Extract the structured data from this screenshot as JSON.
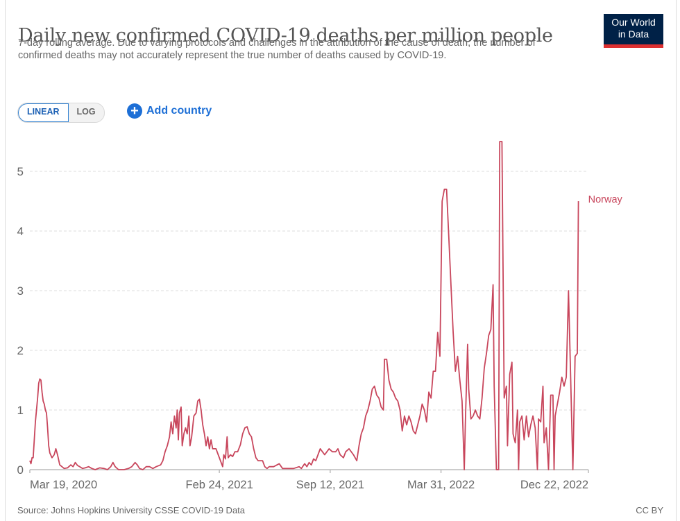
{
  "header": {
    "title": "Daily new confirmed COVID-19 deaths per million people",
    "subtitle": "7-day rolling average. Due to varying protocols and challenges in the attribution of the cause of death, the number of confirmed deaths may not accurately represent the true number of deaths caused by COVID-19.",
    "logo_line1": "Our World",
    "logo_line2": "in Data"
  },
  "controls": {
    "scale_options": [
      "LINEAR",
      "LOG"
    ],
    "active_scale": "LINEAR",
    "add_country_label": "Add country",
    "add_icon": "plus-circle-icon"
  },
  "footer": {
    "source": "Source: Johns Hopkins University CSSE COVID-19 Data",
    "license": "CC BY"
  },
  "colors": {
    "series": "#c8465c",
    "grid": "#dddddd",
    "axis": "#bbbbbb",
    "tick_text": "#666666",
    "accent": "#1d6fd6",
    "logo_bg": "#002147",
    "logo_bar": "#dc2f30"
  },
  "chart_data": {
    "type": "line",
    "title": "Daily new confirmed COVID-19 deaths per million people",
    "xlabel": "",
    "ylabel": "",
    "x_start": "Mar 19, 2020",
    "x_end": "Dec 22, 2022",
    "x_ticks": [
      {
        "label": "Mar 19, 2020",
        "day": 0
      },
      {
        "label": "Feb 24, 2021",
        "day": 342
      },
      {
        "label": "Sep 12, 2021",
        "day": 542
      },
      {
        "label": "Mar 31, 2022",
        "day": 742
      },
      {
        "label": "Dec 22, 2022",
        "day": 1008
      }
    ],
    "ylim": [
      0,
      5.5
    ],
    "y_ticks": [
      0,
      1,
      2,
      3,
      4,
      5
    ],
    "grid": true,
    "legend": "line-end label",
    "series": [
      {
        "name": "Norway",
        "x_unit": "days since Mar 19, 2020",
        "points": [
          [
            0,
            0.15
          ],
          [
            2,
            0.1
          ],
          [
            4,
            0.2
          ],
          [
            6,
            0.2
          ],
          [
            8,
            0.5
          ],
          [
            10,
            0.8
          ],
          [
            12,
            1.0
          ],
          [
            14,
            1.2
          ],
          [
            16,
            1.45
          ],
          [
            18,
            1.52
          ],
          [
            20,
            1.5
          ],
          [
            22,
            1.3
          ],
          [
            24,
            1.15
          ],
          [
            26,
            1.1
          ],
          [
            28,
            1.0
          ],
          [
            30,
            0.95
          ],
          [
            32,
            0.7
          ],
          [
            34,
            0.4
          ],
          [
            36,
            0.28
          ],
          [
            40,
            0.2
          ],
          [
            44,
            0.25
          ],
          [
            47,
            0.35
          ],
          [
            50,
            0.25
          ],
          [
            54,
            0.08
          ],
          [
            58,
            0.05
          ],
          [
            62,
            0.02
          ],
          [
            68,
            0.03
          ],
          [
            74,
            0.08
          ],
          [
            78,
            0.05
          ],
          [
            82,
            0.12
          ],
          [
            86,
            0.07
          ],
          [
            90,
            0.05
          ],
          [
            95,
            0.02
          ],
          [
            100,
            0.03
          ],
          [
            106,
            0.05
          ],
          [
            112,
            0.02
          ],
          [
            118,
            0.0
          ],
          [
            126,
            0.03
          ],
          [
            134,
            0.02
          ],
          [
            140,
            0.0
          ],
          [
            146,
            0.05
          ],
          [
            150,
            0.12
          ],
          [
            154,
            0.05
          ],
          [
            160,
            0.0
          ],
          [
            170,
            0.0
          ],
          [
            178,
            0.02
          ],
          [
            184,
            0.05
          ],
          [
            190,
            0.12
          ],
          [
            194,
            0.08
          ],
          [
            198,
            0.02
          ],
          [
            204,
            0.0
          ],
          [
            210,
            0.05
          ],
          [
            216,
            0.05
          ],
          [
            222,
            0.02
          ],
          [
            228,
            0.05
          ],
          [
            236,
            0.08
          ],
          [
            240,
            0.15
          ],
          [
            244,
            0.3
          ],
          [
            248,
            0.4
          ],
          [
            252,
            0.55
          ],
          [
            255,
            0.8
          ],
          [
            258,
            0.6
          ],
          [
            261,
            0.9
          ],
          [
            264,
            0.7
          ],
          [
            266,
            1.0
          ],
          [
            268,
            0.5
          ],
          [
            270,
            0.95
          ],
          [
            273,
            1.05
          ],
          [
            275,
            0.4
          ],
          [
            278,
            0.6
          ],
          [
            281,
            0.7
          ],
          [
            284,
            0.6
          ],
          [
            287,
            0.9
          ],
          [
            289,
            0.4
          ],
          [
            292,
            0.55
          ],
          [
            296,
            0.9
          ],
          [
            300,
            0.95
          ],
          [
            303,
            1.15
          ],
          [
            306,
            1.18
          ],
          [
            309,
            1.0
          ],
          [
            312,
            0.75
          ],
          [
            315,
            0.6
          ],
          [
            318,
            0.4
          ],
          [
            321,
            0.55
          ],
          [
            324,
            0.35
          ],
          [
            327,
            0.5
          ],
          [
            330,
            0.35
          ],
          [
            336,
            0.35
          ],
          [
            340,
            0.25
          ],
          [
            344,
            0.15
          ],
          [
            348,
            0.05
          ],
          [
            350,
            0.25
          ],
          [
            353,
            0.18
          ],
          [
            356,
            0.55
          ],
          [
            358,
            0.2
          ],
          [
            362,
            0.25
          ],
          [
            366,
            0.22
          ],
          [
            370,
            0.3
          ],
          [
            375,
            0.3
          ],
          [
            380,
            0.42
          ],
          [
            384,
            0.6
          ],
          [
            388,
            0.7
          ],
          [
            392,
            0.72
          ],
          [
            396,
            0.6
          ],
          [
            400,
            0.55
          ],
          [
            404,
            0.35
          ],
          [
            408,
            0.2
          ],
          [
            412,
            0.15
          ],
          [
            420,
            0.15
          ],
          [
            424,
            0.05
          ],
          [
            428,
            0.02
          ],
          [
            432,
            0.05
          ],
          [
            440,
            0.05
          ],
          [
            450,
            0.1
          ],
          [
            456,
            0.02
          ],
          [
            466,
            0.02
          ],
          [
            476,
            0.02
          ],
          [
            486,
            0.05
          ],
          [
            490,
            0.02
          ],
          [
            496,
            0.1
          ],
          [
            500,
            0.05
          ],
          [
            504,
            0.12
          ],
          [
            508,
            0.08
          ],
          [
            512,
            0.18
          ],
          [
            516,
            0.15
          ],
          [
            520,
            0.25
          ],
          [
            524,
            0.35
          ],
          [
            528,
            0.3
          ],
          [
            532,
            0.25
          ],
          [
            536,
            0.3
          ],
          [
            540,
            0.35
          ],
          [
            546,
            0.3
          ],
          [
            552,
            0.3
          ],
          [
            556,
            0.35
          ],
          [
            560,
            0.25
          ],
          [
            566,
            0.2
          ],
          [
            570,
            0.3
          ],
          [
            576,
            0.35
          ],
          [
            580,
            0.3
          ],
          [
            584,
            0.25
          ],
          [
            590,
            0.15
          ],
          [
            594,
            0.4
          ],
          [
            598,
            0.6
          ],
          [
            602,
            0.7
          ],
          [
            606,
            0.9
          ],
          [
            610,
            1.0
          ],
          [
            614,
            1.15
          ],
          [
            618,
            1.35
          ],
          [
            622,
            1.4
          ],
          [
            626,
            1.25
          ],
          [
            630,
            1.2
          ],
          [
            634,
            1.05
          ],
          [
            638,
            1.0
          ],
          [
            640,
            1.85
          ],
          [
            644,
            1.85
          ],
          [
            648,
            1.5
          ],
          [
            652,
            1.35
          ],
          [
            656,
            1.3
          ],
          [
            660,
            1.2
          ],
          [
            664,
            1.15
          ],
          [
            668,
            1.0
          ],
          [
            672,
            0.65
          ],
          [
            676,
            0.9
          ],
          [
            680,
            0.75
          ],
          [
            684,
            0.9
          ],
          [
            688,
            0.8
          ],
          [
            692,
            0.65
          ],
          [
            696,
            0.6
          ],
          [
            700,
            0.75
          ],
          [
            704,
            0.9
          ],
          [
            708,
            1.1
          ],
          [
            712,
            1.0
          ],
          [
            716,
            0.8
          ],
          [
            720,
            1.3
          ],
          [
            724,
            1.2
          ],
          [
            728,
            1.65
          ],
          [
            732,
            1.65
          ],
          [
            736,
            2.3
          ],
          [
            740,
            1.9
          ],
          [
            744,
            4.5
          ],
          [
            748,
            4.7
          ],
          [
            752,
            4.7
          ],
          [
            756,
            3.9
          ],
          [
            760,
            3.1
          ],
          [
            764,
            2.3
          ],
          [
            768,
            1.65
          ],
          [
            772,
            1.9
          ],
          [
            776,
            1.5
          ],
          [
            780,
            1.15
          ],
          [
            784,
            0.0
          ],
          [
            786,
            0.8
          ],
          [
            790,
            2.1
          ],
          [
            792,
            1.35
          ],
          [
            796,
            0.85
          ],
          [
            800,
            0.9
          ],
          [
            804,
            1.0
          ],
          [
            808,
            0.9
          ],
          [
            812,
            0.85
          ],
          [
            816,
            1.2
          ],
          [
            820,
            1.7
          ],
          [
            824,
            1.95
          ],
          [
            828,
            2.25
          ],
          [
            832,
            2.35
          ],
          [
            836,
            3.1
          ],
          [
            838,
            1.4
          ],
          [
            842,
            0.0
          ],
          [
            846,
            0.0
          ],
          [
            848,
            5.5
          ],
          [
            852,
            5.5
          ],
          [
            856,
            1.2
          ],
          [
            860,
            1.4
          ],
          [
            862,
            0.4
          ],
          [
            866,
            1.6
          ],
          [
            870,
            1.8
          ],
          [
            872,
            0.6
          ],
          [
            876,
            0.45
          ],
          [
            880,
            1.0
          ],
          [
            882,
            0.0
          ],
          [
            884,
            0.8
          ],
          [
            888,
            0.9
          ],
          [
            892,
            0.5
          ],
          [
            896,
            0.9
          ],
          [
            900,
            0.55
          ],
          [
            904,
            0.75
          ],
          [
            908,
            0.9
          ],
          [
            912,
            0.7
          ],
          [
            916,
            0.0
          ],
          [
            918,
            0.85
          ],
          [
            922,
            0.8
          ],
          [
            926,
            1.4
          ],
          [
            928,
            0.45
          ],
          [
            932,
            0.7
          ],
          [
            936,
            0.0
          ],
          [
            940,
            1.25
          ],
          [
            944,
            1.25
          ],
          [
            946,
            0.0
          ],
          [
            948,
            0.9
          ],
          [
            952,
            1.1
          ],
          [
            956,
            1.3
          ],
          [
            960,
            1.55
          ],
          [
            964,
            1.4
          ],
          [
            968,
            1.55
          ],
          [
            972,
            3.0
          ],
          [
            976,
            1.55
          ],
          [
            980,
            0.0
          ],
          [
            984,
            1.9
          ],
          [
            988,
            1.95
          ],
          [
            990,
            4.5
          ]
        ],
        "last_value": 4.5
      }
    ]
  }
}
